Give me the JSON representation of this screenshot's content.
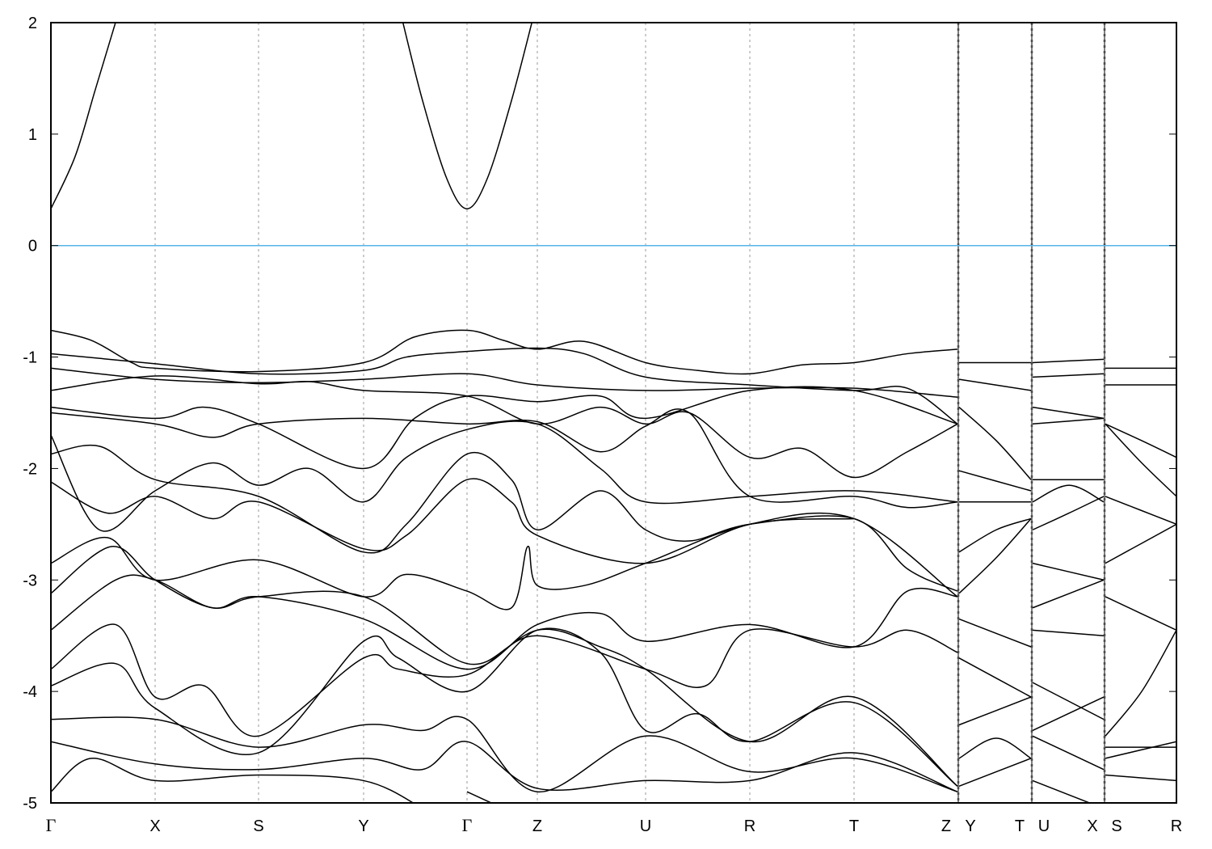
{
  "chart_data": {
    "type": "line",
    "title": "",
    "xlabel": "",
    "ylabel": "",
    "ylim": [
      -5,
      2
    ],
    "yticks": [
      2,
      1,
      0,
      -1,
      -2,
      -3,
      -4,
      -5
    ],
    "grid": "vertical dotted at high-symmetry points",
    "fermi_level": {
      "value": 0,
      "color": "#56b4e9"
    },
    "band_color": "#000000",
    "xticks": [
      {
        "label": "Γ",
        "x": 0
      },
      {
        "label": "X",
        "x": 1.29
      },
      {
        "label": "S",
        "x": 2.57
      },
      {
        "label": "Y",
        "x": 3.87
      },
      {
        "label": "Γ",
        "x": 5.15
      },
      {
        "label": "Z",
        "x": 6.02
      },
      {
        "label": "U",
        "x": 7.36
      },
      {
        "label": "R",
        "x": 8.65
      },
      {
        "label": "T",
        "x": 9.94
      },
      {
        "label": "Z",
        "x": 11.22
      },
      {
        "label": "Y",
        "x": 11.24
      },
      {
        "label": "T",
        "x": 12.13
      },
      {
        "label": "U",
        "x": 12.15
      },
      {
        "label": "X",
        "x": 13.03
      },
      {
        "label": "S",
        "x": 13.05
      },
      {
        "label": "R",
        "x": 13.93
      }
    ],
    "xlim": [
      0,
      13.93
    ],
    "bands": [
      [
        [
          0,
          0.33
        ],
        [
          0.3,
          0.8
        ],
        [
          0.55,
          1.4
        ],
        [
          0.82,
          2.05
        ]
      ],
      [
        [
          4.34,
          2.05
        ],
        [
          4.6,
          1.3
        ],
        [
          4.9,
          0.6
        ],
        [
          5.15,
          0.33
        ],
        [
          5.4,
          0.6
        ],
        [
          5.7,
          1.3
        ],
        [
          5.97,
          2.05
        ]
      ],
      [
        [
          0,
          -0.76
        ],
        [
          0.5,
          -0.85
        ],
        [
          1.0,
          -1.05
        ],
        [
          1.29,
          -1.1
        ],
        [
          2.57,
          -1.13
        ],
        [
          3.87,
          -1.05
        ],
        [
          4.5,
          -0.82
        ],
        [
          5.15,
          -0.76
        ],
        [
          5.6,
          -0.85
        ],
        [
          6.02,
          -0.93
        ],
        [
          6.6,
          -0.86
        ],
        [
          7.36,
          -1.05
        ],
        [
          8.0,
          -1.12
        ],
        [
          8.65,
          -1.15
        ],
        [
          9.3,
          -1.07
        ],
        [
          9.94,
          -1.05
        ],
        [
          10.6,
          -0.97
        ],
        [
          11.22,
          -0.93
        ]
      ],
      [
        [
          0,
          -0.97
        ],
        [
          1.29,
          -1.06
        ],
        [
          2.57,
          -1.15
        ],
        [
          3.87,
          -1.12
        ],
        [
          4.4,
          -1.0
        ],
        [
          5.15,
          -0.95
        ],
        [
          6.02,
          -0.92
        ],
        [
          6.6,
          -0.97
        ],
        [
          7.36,
          -1.18
        ],
        [
          8.65,
          -1.25
        ],
        [
          9.94,
          -1.3
        ],
        [
          10.6,
          -1.28
        ],
        [
          11.22,
          -1.6
        ]
      ],
      [
        [
          0,
          -1.1
        ],
        [
          1.29,
          -1.2
        ],
        [
          2.57,
          -1.23
        ],
        [
          3.87,
          -1.2
        ],
        [
          5.15,
          -1.15
        ],
        [
          6.02,
          -1.25
        ],
        [
          7.36,
          -1.3
        ],
        [
          8.65,
          -1.28
        ],
        [
          9.94,
          -1.28
        ],
        [
          11.22,
          -1.36
        ]
      ],
      [
        [
          0,
          -1.3
        ],
        [
          1.29,
          -1.17
        ],
        [
          2.57,
          -1.24
        ],
        [
          3.2,
          -1.22
        ],
        [
          3.87,
          -1.3
        ],
        [
          5.15,
          -1.35
        ],
        [
          6.02,
          -1.6
        ],
        [
          6.8,
          -1.45
        ],
        [
          7.36,
          -1.6
        ],
        [
          7.9,
          -1.5
        ],
        [
          8.65,
          -1.9
        ],
        [
          9.3,
          -1.82
        ],
        [
          9.94,
          -2.08
        ],
        [
          10.6,
          -1.85
        ],
        [
          11.22,
          -1.6
        ]
      ],
      [
        [
          0,
          -1.45
        ],
        [
          1.29,
          -1.55
        ],
        [
          1.9,
          -1.45
        ],
        [
          2.57,
          -1.6
        ],
        [
          3.87,
          -2.0
        ],
        [
          4.5,
          -1.55
        ],
        [
          5.15,
          -1.35
        ],
        [
          6.02,
          -1.4
        ],
        [
          6.8,
          -1.35
        ],
        [
          7.36,
          -1.55
        ],
        [
          8.65,
          -1.3
        ],
        [
          9.94,
          -1.3
        ],
        [
          11.22,
          -1.6
        ]
      ],
      [
        [
          0,
          -1.5
        ],
        [
          1.29,
          -1.6
        ],
        [
          2.0,
          -1.72
        ],
        [
          2.57,
          -1.6
        ],
        [
          3.87,
          -1.55
        ],
        [
          5.15,
          -1.6
        ],
        [
          6.02,
          -1.58
        ],
        [
          6.8,
          -1.85
        ],
        [
          7.36,
          -1.62
        ],
        [
          7.9,
          -1.5
        ],
        [
          8.65,
          -2.25
        ],
        [
          9.94,
          -2.25
        ],
        [
          10.6,
          -2.35
        ],
        [
          11.22,
          -2.3
        ]
      ],
      [
        [
          0,
          -1.7
        ],
        [
          0.6,
          -2.55
        ],
        [
          1.29,
          -2.2
        ],
        [
          2.0,
          -1.95
        ],
        [
          2.57,
          -2.15
        ],
        [
          3.2,
          -2.0
        ],
        [
          3.87,
          -2.3
        ],
        [
          4.4,
          -1.9
        ],
        [
          5.15,
          -1.65
        ],
        [
          6.02,
          -1.6
        ],
        [
          6.8,
          -2.0
        ],
        [
          7.36,
          -2.3
        ],
        [
          8.65,
          -2.25
        ],
        [
          9.94,
          -2.2
        ],
        [
          11.22,
          -2.3
        ]
      ],
      [
        [
          0,
          -1.87
        ],
        [
          0.6,
          -1.8
        ],
        [
          1.29,
          -2.1
        ],
        [
          2.57,
          -2.25
        ],
        [
          3.87,
          -2.75
        ],
        [
          4.4,
          -2.5
        ],
        [
          5.15,
          -1.87
        ],
        [
          5.7,
          -2.1
        ],
        [
          6.02,
          -2.55
        ],
        [
          6.8,
          -2.2
        ],
        [
          7.36,
          -2.55
        ],
        [
          7.9,
          -2.65
        ],
        [
          8.65,
          -2.5
        ],
        [
          9.94,
          -2.45
        ],
        [
          10.6,
          -2.9
        ],
        [
          11.22,
          -3.1
        ]
      ],
      [
        [
          0,
          -2.12
        ],
        [
          0.7,
          -2.4
        ],
        [
          1.29,
          -2.25
        ],
        [
          2.0,
          -2.45
        ],
        [
          2.57,
          -2.3
        ],
        [
          3.87,
          -2.72
        ],
        [
          4.4,
          -2.6
        ],
        [
          5.15,
          -2.1
        ],
        [
          5.7,
          -2.3
        ],
        [
          6.02,
          -2.6
        ],
        [
          7.36,
          -2.85
        ],
        [
          8.65,
          -2.5
        ],
        [
          9.94,
          -2.45
        ],
        [
          11.22,
          -3.15
        ]
      ],
      [
        [
          0,
          -2.85
        ],
        [
          0.7,
          -2.62
        ],
        [
          1.29,
          -3.0
        ],
        [
          2.57,
          -2.82
        ],
        [
          3.87,
          -3.15
        ],
        [
          4.4,
          -2.95
        ],
        [
          5.15,
          -3.1
        ],
        [
          5.7,
          -3.25
        ],
        [
          5.9,
          -2.7
        ],
        [
          6.02,
          -3.05
        ],
        [
          6.6,
          -3.05
        ],
        [
          7.36,
          -2.85
        ],
        [
          8.65,
          -2.5
        ],
        [
          9.94,
          -2.45
        ]
      ],
      [
        [
          0,
          -3.12
        ],
        [
          0.75,
          -2.7
        ],
        [
          1.29,
          -3.0
        ],
        [
          2.0,
          -3.25
        ],
        [
          2.57,
          -3.15
        ],
        [
          3.87,
          -3.35
        ],
        [
          5.15,
          -3.8
        ],
        [
          6.02,
          -3.4
        ],
        [
          6.8,
          -3.3
        ],
        [
          7.36,
          -3.55
        ],
        [
          8.65,
          -3.4
        ],
        [
          9.94,
          -3.6
        ],
        [
          10.6,
          -3.1
        ],
        [
          11.22,
          -3.15
        ]
      ],
      [
        [
          0,
          -3.45
        ],
        [
          0.8,
          -3.0
        ],
        [
          1.29,
          -3.0
        ],
        [
          2.0,
          -3.25
        ],
        [
          2.57,
          -3.15
        ],
        [
          3.87,
          -3.15
        ],
        [
          5.15,
          -3.75
        ],
        [
          6.02,
          -3.5
        ],
        [
          7.36,
          -3.8
        ],
        [
          8.1,
          -3.95
        ],
        [
          8.65,
          -3.45
        ],
        [
          9.94,
          -3.6
        ],
        [
          10.6,
          -3.45
        ],
        [
          11.22,
          -3.65
        ]
      ],
      [
        [
          0,
          -3.8
        ],
        [
          0.8,
          -3.4
        ],
        [
          1.29,
          -4.05
        ],
        [
          1.9,
          -3.95
        ],
        [
          2.57,
          -4.4
        ],
        [
          3.87,
          -3.7
        ],
        [
          4.3,
          -3.8
        ],
        [
          5.15,
          -3.85
        ],
        [
          6.02,
          -3.45
        ],
        [
          6.8,
          -3.6
        ],
        [
          7.36,
          -3.8
        ],
        [
          8.65,
          -4.45
        ],
        [
          9.94,
          -4.05
        ],
        [
          11.22,
          -4.85
        ]
      ],
      [
        [
          0,
          -3.95
        ],
        [
          0.8,
          -3.75
        ],
        [
          1.29,
          -4.15
        ],
        [
          2.57,
          -4.55
        ],
        [
          3.87,
          -3.55
        ],
        [
          4.3,
          -3.7
        ],
        [
          5.15,
          -4.0
        ],
        [
          6.02,
          -3.45
        ],
        [
          6.8,
          -3.65
        ],
        [
          7.36,
          -4.35
        ],
        [
          8.0,
          -4.2
        ],
        [
          8.65,
          -4.45
        ],
        [
          9.94,
          -4.1
        ],
        [
          11.22,
          -4.85
        ]
      ],
      [
        [
          0,
          -4.25
        ],
        [
          1.29,
          -4.25
        ],
        [
          2.57,
          -4.5
        ],
        [
          3.87,
          -4.3
        ],
        [
          4.6,
          -4.35
        ],
        [
          5.15,
          -4.25
        ],
        [
          6.02,
          -4.9
        ],
        [
          7.36,
          -4.4
        ],
        [
          8.65,
          -4.72
        ],
        [
          9.94,
          -4.6
        ],
        [
          11.22,
          -4.9
        ]
      ],
      [
        [
          0,
          -4.45
        ],
        [
          1.29,
          -4.65
        ],
        [
          2.57,
          -4.7
        ],
        [
          3.87,
          -4.6
        ],
        [
          4.6,
          -4.7
        ],
        [
          5.15,
          -4.45
        ],
        [
          6.02,
          -4.87
        ],
        [
          7.36,
          -4.8
        ],
        [
          8.65,
          -4.8
        ],
        [
          9.94,
          -4.55
        ],
        [
          11.22,
          -4.9
        ]
      ],
      [
        [
          0,
          -4.9
        ],
        [
          0.5,
          -4.6
        ],
        [
          1.29,
          -4.8
        ],
        [
          2.57,
          -4.75
        ],
        [
          3.87,
          -4.8
        ],
        [
          4.6,
          -5.05
        ]
      ],
      [
        [
          5.15,
          -4.9
        ],
        [
          5.6,
          -5.05
        ]
      ],
      [
        [
          11.24,
          -1.05
        ],
        [
          12.13,
          -1.05
        ]
      ],
      [
        [
          11.24,
          -1.2
        ],
        [
          12.13,
          -1.3
        ]
      ],
      [
        [
          11.24,
          -1.45
        ],
        [
          11.7,
          -1.75
        ],
        [
          12.13,
          -2.1
        ]
      ],
      [
        [
          11.24,
          -2.02
        ],
        [
          12.13,
          -2.2
        ]
      ],
      [
        [
          11.24,
          -2.3
        ],
        [
          12.13,
          -2.3
        ]
      ],
      [
        [
          11.24,
          -2.75
        ],
        [
          11.7,
          -2.55
        ],
        [
          12.13,
          -2.45
        ]
      ],
      [
        [
          11.24,
          -3.12
        ],
        [
          11.7,
          -2.8
        ],
        [
          12.13,
          -2.45
        ]
      ],
      [
        [
          11.24,
          -3.35
        ],
        [
          12.13,
          -3.6
        ]
      ],
      [
        [
          11.24,
          -3.7
        ],
        [
          12.13,
          -4.05
        ]
      ],
      [
        [
          11.24,
          -4.3
        ],
        [
          12.13,
          -4.05
        ]
      ],
      [
        [
          11.24,
          -4.6
        ],
        [
          11.7,
          -4.42
        ],
        [
          12.13,
          -4.6
        ]
      ],
      [
        [
          11.24,
          -4.85
        ],
        [
          12.13,
          -4.6
        ]
      ],
      [
        [
          12.15,
          -1.05
        ],
        [
          13.03,
          -1.02
        ]
      ],
      [
        [
          12.15,
          -1.18
        ],
        [
          13.03,
          -1.15
        ]
      ],
      [
        [
          12.15,
          -1.45
        ],
        [
          13.03,
          -1.55
        ]
      ],
      [
        [
          12.15,
          -1.6
        ],
        [
          13.03,
          -1.55
        ]
      ],
      [
        [
          12.15,
          -2.1
        ],
        [
          13.03,
          -2.1
        ]
      ],
      [
        [
          12.15,
          -2.3
        ],
        [
          12.6,
          -2.15
        ],
        [
          13.03,
          -2.3
        ]
      ],
      [
        [
          12.15,
          -2.55
        ],
        [
          12.6,
          -2.4
        ],
        [
          13.03,
          -2.25
        ]
      ],
      [
        [
          12.15,
          -2.85
        ],
        [
          13.03,
          -3.0
        ]
      ],
      [
        [
          12.15,
          -3.25
        ],
        [
          13.03,
          -3.0
        ]
      ],
      [
        [
          12.15,
          -3.45
        ],
        [
          13.03,
          -3.5
        ]
      ],
      [
        [
          12.15,
          -3.92
        ],
        [
          13.03,
          -4.25
        ]
      ],
      [
        [
          12.15,
          -4.35
        ],
        [
          13.03,
          -4.05
        ]
      ],
      [
        [
          12.15,
          -4.4
        ],
        [
          13.03,
          -4.7
        ]
      ],
      [
        [
          12.15,
          -4.8
        ],
        [
          13.03,
          -5.05
        ]
      ],
      [
        [
          13.05,
          -1.1
        ],
        [
          13.93,
          -1.1
        ]
      ],
      [
        [
          13.05,
          -1.25
        ],
        [
          13.93,
          -1.25
        ]
      ],
      [
        [
          13.05,
          -1.6
        ],
        [
          13.5,
          -1.75
        ],
        [
          13.93,
          -1.9
        ]
      ],
      [
        [
          13.05,
          -1.6
        ],
        [
          13.5,
          -1.95
        ],
        [
          13.93,
          -2.25
        ]
      ],
      [
        [
          13.05,
          -2.25
        ],
        [
          13.93,
          -2.5
        ]
      ],
      [
        [
          13.05,
          -2.85
        ],
        [
          13.93,
          -2.5
        ]
      ],
      [
        [
          13.05,
          -3.15
        ],
        [
          13.93,
          -3.45
        ]
      ],
      [
        [
          13.05,
          -4.4
        ],
        [
          13.5,
          -4.0
        ],
        [
          13.93,
          -3.45
        ]
      ],
      [
        [
          13.05,
          -4.5
        ],
        [
          13.93,
          -4.5
        ]
      ],
      [
        [
          13.05,
          -4.6
        ],
        [
          13.93,
          -4.45
        ]
      ],
      [
        [
          13.05,
          -4.75
        ],
        [
          13.93,
          -4.8
        ]
      ]
    ]
  }
}
